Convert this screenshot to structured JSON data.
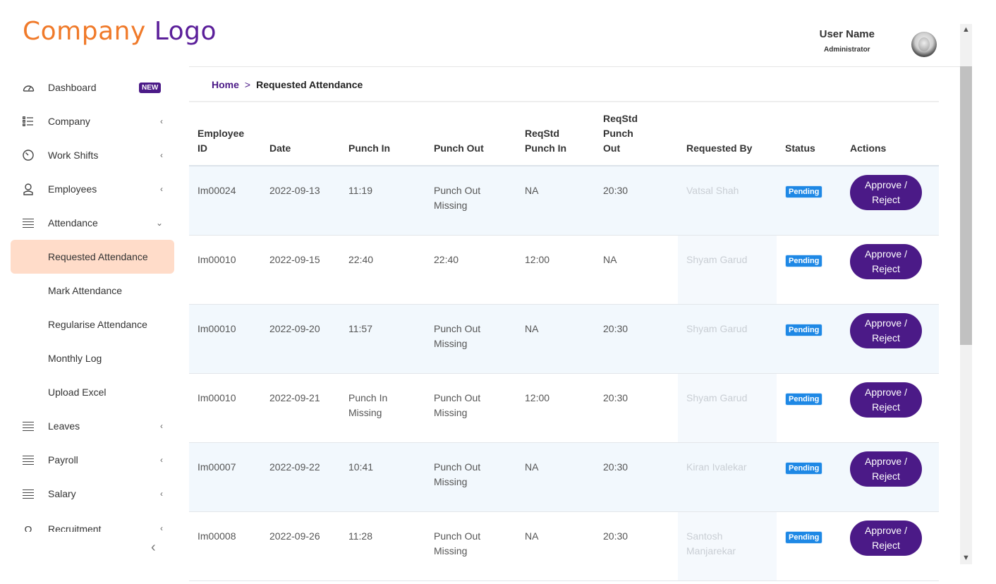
{
  "logo": {
    "part1": "Company",
    "part2": "Logo"
  },
  "user": {
    "name": "User Name",
    "role": "Administrator"
  },
  "sidebar": {
    "items": [
      {
        "label": "Dashboard",
        "icon": "gauge-icon",
        "badge": "NEW"
      },
      {
        "label": "Company",
        "icon": "list-icon",
        "chevron": "‹"
      },
      {
        "label": "Work Shifts",
        "icon": "clock-icon",
        "chevron": "‹"
      },
      {
        "label": "Employees",
        "icon": "user-icon",
        "chevron": "‹"
      },
      {
        "label": "Attendance",
        "icon": "menu-icon",
        "chevron": "⌄"
      },
      {
        "label": "Requested Attendance"
      },
      {
        "label": "Mark Attendance"
      },
      {
        "label": "Regularise Attendance"
      },
      {
        "label": "Monthly Log"
      },
      {
        "label": "Upload Excel"
      },
      {
        "label": "Leaves",
        "icon": "menu-icon",
        "chevron": "‹"
      },
      {
        "label": "Payroll",
        "icon": "menu-icon",
        "chevron": "‹"
      },
      {
        "label": "Salary",
        "icon": "menu-icon",
        "chevron": "‹"
      },
      {
        "label": "Recruitment",
        "icon": "omega-icon",
        "chevron": "‹"
      }
    ],
    "collapse_glyph": "‹"
  },
  "breadcrumb": {
    "home": "Home",
    "separator": ">",
    "current": "Requested Attendance"
  },
  "table": {
    "headers": {
      "emp_id_1": "Employee",
      "emp_id_2": "ID",
      "date": "Date",
      "punch_in": "Punch In",
      "punch_out": "Punch Out",
      "req_in_1": "ReqStd",
      "req_in_2": "Punch In",
      "req_out_1": "ReqStd Punch",
      "req_out_2": "Out",
      "requested_by": "Requested By",
      "status": "Status",
      "actions": "Actions"
    },
    "rows": [
      {
        "emp": "Im00024",
        "date": "2022-09-13",
        "pin1": "11:19",
        "pin2": "",
        "pout1": "Punch Out",
        "pout2": "Missing",
        "rin": "NA",
        "rout": "20:30",
        "by1": "Vatsal Shah",
        "by2": "",
        "status": "Pending",
        "action1": "Approve /",
        "action2": "Reject"
      },
      {
        "emp": "Im00010",
        "date": "2022-09-15",
        "pin1": "22:40",
        "pin2": "",
        "pout1": "22:40",
        "pout2": "",
        "rin": "12:00",
        "rout": "NA",
        "by1": "Shyam Garud",
        "by2": "",
        "status": "Pending",
        "action1": "Approve /",
        "action2": "Reject"
      },
      {
        "emp": "Im00010",
        "date": "2022-09-20",
        "pin1": "11:57",
        "pin2": "",
        "pout1": "Punch Out",
        "pout2": "Missing",
        "rin": "NA",
        "rout": "20:30",
        "by1": "Shyam Garud",
        "by2": "",
        "status": "Pending",
        "action1": "Approve /",
        "action2": "Reject"
      },
      {
        "emp": "Im00010",
        "date": "2022-09-21",
        "pin1": "Punch In",
        "pin2": "Missing",
        "pout1": "Punch Out",
        "pout2": "Missing",
        "rin": "12:00",
        "rout": "20:30",
        "by1": "Shyam Garud",
        "by2": "",
        "status": "Pending",
        "action1": "Approve /",
        "action2": "Reject"
      },
      {
        "emp": "Im00007",
        "date": "2022-09-22",
        "pin1": "10:41",
        "pin2": "",
        "pout1": "Punch Out",
        "pout2": "Missing",
        "rin": "NA",
        "rout": "20:30",
        "by1": "Kiran Ivalekar",
        "by2": "",
        "status": "Pending",
        "action1": "Approve /",
        "action2": "Reject"
      },
      {
        "emp": "Im00008",
        "date": "2022-09-26",
        "pin1": "11:28",
        "pin2": "",
        "pout1": "Punch Out",
        "pout2": "Missing",
        "rin": "NA",
        "rout": "20:30",
        "by1": "Santosh",
        "by2": "Manjarekar",
        "status": "Pending",
        "action1": "Approve /",
        "action2": "Reject"
      }
    ]
  },
  "scrollbar": {
    "up": "▲",
    "down": "▼"
  },
  "colors": {
    "brand_orange": "#f07a2a",
    "brand_purple": "#4b1a87",
    "pending": "#1e88e5",
    "active_bg": "#ffdcc9"
  }
}
